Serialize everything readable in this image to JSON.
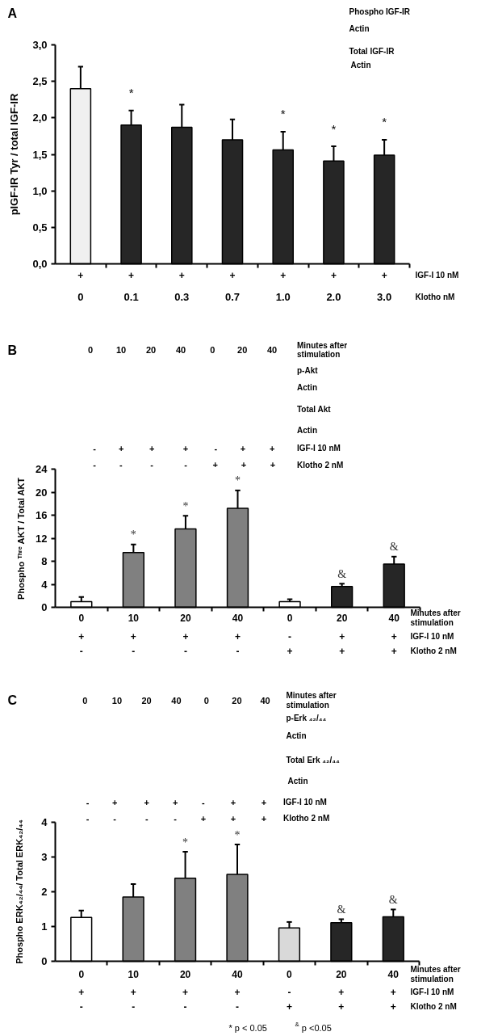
{
  "chart_data": [
    {
      "type": "bar",
      "title": "A",
      "ylabel": "pIGF-IR Tyr / total IGF-IR",
      "categories": [
        "+\n0",
        "+\n0.1",
        "+\n0.3",
        "+\n0.7",
        "+\n1.0",
        "+\n2.0",
        "+\n3.0"
      ],
      "colors": [
        "#f0f0f0",
        "#262626",
        "#262626",
        "#262626",
        "#262626",
        "#262626",
        "#262626"
      ],
      "values": [
        2.4,
        1.9,
        1.87,
        1.7,
        1.56,
        1.41,
        1.49
      ],
      "errors": [
        [
          2.4,
          2.7
        ],
        [
          1.9,
          2.1
        ],
        [
          1.87,
          2.18
        ],
        [
          1.7,
          1.98
        ],
        [
          1.56,
          1.81
        ],
        [
          1.41,
          1.61
        ],
        [
          1.49,
          1.7
        ]
      ],
      "ylim": [
        0,
        3
      ],
      "yticks": [
        {
          "value": 0,
          "label": "0,0"
        },
        {
          "value": 0.5,
          "label": "0,5"
        },
        {
          "value": 1,
          "label": "1,0"
        },
        {
          "value": 1.5,
          "label": "1,5"
        },
        {
          "value": 2,
          "label": "2,0"
        },
        {
          "value": 2.5,
          "label": "2,5"
        },
        {
          "value": 3,
          "label": "3,0"
        }
      ],
      "annotations": [
        "IGF-I 10 nM",
        "Klotho nM",
        "Phospho IGF-IR",
        "Actin",
        "Total IGF-IR",
        "Actin",
        {
          "text": "*",
          "x": "+\n0.1",
          "y": 1.9
        },
        {
          "text": "*",
          "x": "+\n1.0",
          "y": 1.56
        },
        {
          "text": "*",
          "x": "+\n2.0",
          "y": 1.41
        },
        {
          "text": "*",
          "x": "+\n3.0",
          "y": 1.49
        }
      ]
    },
    {
      "type": "bar",
      "title": "B",
      "ylabel": "Phospho ᵀʰʳᵉ AKT / Total AKT",
      "categories": [
        "0\n+\n-",
        "10\n+\n-",
        "20\n+\n-",
        "40\n+\n-",
        "0\n-\n+",
        "20\n+\n+",
        "40\n+\n+"
      ],
      "colors": [
        "#ffffff",
        "#808080",
        "#808080",
        "#808080",
        "#ffffff",
        "#262626",
        "#262626"
      ],
      "values": [
        1.0,
        9.5,
        13.6,
        17.2,
        1.0,
        3.6,
        7.5
      ],
      "errors": [
        [
          1.0,
          1.8
        ],
        [
          9.5,
          10.9
        ],
        [
          13.6,
          15.9
        ],
        [
          17.2,
          20.3
        ],
        [
          1.0,
          1.4
        ],
        [
          3.6,
          4.1
        ],
        [
          7.5,
          8.8
        ]
      ],
      "ylim": [
        0,
        24
      ],
      "yticks": [
        0,
        4,
        8,
        12,
        16,
        20,
        24
      ],
      "annotations": [
        "Minutes after\nstimulation",
        "IGF-I 10 nM",
        "Klotho 2 nM",
        "0",
        "10",
        "20",
        "40",
        "0",
        "20",
        "40",
        "Minutes after\nstimulation",
        "p-Akt",
        "Actin",
        "Total Akt",
        "Actin",
        "-",
        "+",
        "+",
        "+",
        "-",
        "+",
        "+",
        "IGF-I 10 nM",
        "-",
        "-",
        "-",
        "-",
        "+",
        "+",
        "+",
        "Klotho 2 nM",
        {
          "text": "*",
          "x": "10\n+\n-",
          "y": 9.5
        },
        {
          "text": "*",
          "x": "20\n+\n-",
          "y": 13.6
        },
        {
          "text": "*",
          "x": "40\n+\n-",
          "y": 17.2
        },
        {
          "text": "&",
          "x": "20\n+\n+",
          "y": 3.6
        },
        {
          "text": "&",
          "x": "40\n+\n+",
          "y": 7.5
        }
      ]
    },
    {
      "type": "bar",
      "title": "C",
      "ylabel": "Phospho ERK₄₂/₄₄/ Total ERK₄₂/₄₄",
      "categories": [
        "0\n+\n-",
        "10\n+\n-",
        "20\n+\n-",
        "40\n+\n-",
        "0\n-\n+",
        "20\n+\n+",
        "40\n+\n+"
      ],
      "colors": [
        "#ffffff",
        "#808080",
        "#808080",
        "#808080",
        "#d9d9d9",
        "#262626",
        "#262626"
      ],
      "values": [
        1.26,
        1.85,
        2.39,
        2.5,
        0.96,
        1.11,
        1.28
      ],
      "errors": [
        [
          1.26,
          1.46
        ],
        [
          1.85,
          2.22
        ],
        [
          2.39,
          3.15
        ],
        [
          2.5,
          3.36
        ],
        [
          0.96,
          1.13
        ],
        [
          1.11,
          1.21
        ],
        [
          1.28,
          1.49
        ]
      ],
      "ylim": [
        0,
        4
      ],
      "yticks": [
        0,
        1,
        2,
        3,
        4
      ],
      "annotations": [
        "Minutes after\nstimulation",
        "IGF-I 10 nM",
        "Klotho 2 nM",
        "0",
        "10",
        "20",
        "40",
        "0",
        "20",
        "40",
        "Minutes after\nstimulation",
        "p-Erk ₄₂/₄₄",
        "Actin",
        "Total Erk ₄₂/₄₄",
        "Actin",
        "-",
        "+",
        "+",
        "+",
        "-",
        "+",
        "+",
        "IGF-I 10 nM",
        "-",
        "-",
        "-",
        "-",
        "+",
        "+",
        "+",
        "Klotho 2 nM",
        "* p < 0.05",
        "$^{&}$ p <0.05",
        {
          "text": "*",
          "x": "20\n+\n-",
          "y": 2.39
        },
        {
          "text": "*",
          "x": "40\n+\n-",
          "y": 2.5
        },
        {
          "text": "&",
          "x": "20\n+\n+",
          "y": 1.11
        },
        {
          "text": "&",
          "x": "40\n+\n+",
          "y": 1.28
        }
      ]
    }
  ]
}
